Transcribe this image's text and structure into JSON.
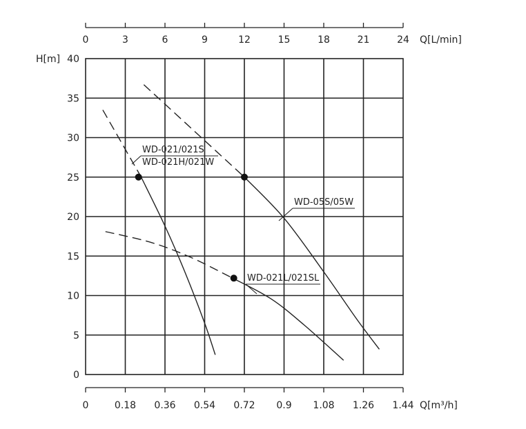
{
  "chart_data": {
    "type": "line",
    "ylabel": "H[m]",
    "ylim": [
      0,
      40
    ],
    "y_ticks": [
      "0",
      "5",
      "10",
      "15",
      "20",
      "25",
      "30",
      "35",
      "40"
    ],
    "x_top": {
      "label": "Q[L/min]",
      "lim": [
        0,
        24
      ],
      "ticks": [
        "0",
        "3",
        "6",
        "9",
        "12",
        "15",
        "18",
        "21",
        "24"
      ]
    },
    "x_bottom": {
      "label": "Q[m³/h]",
      "lim": [
        0,
        1.44
      ],
      "ticks": [
        "0",
        "0.18",
        "0.36",
        "0.54",
        "0.72",
        "0.9",
        "1.08",
        "1.26",
        "1.44"
      ]
    },
    "grid": true,
    "series": [
      {
        "name": "WD-021/021S",
        "name2": "WD-021H/021W",
        "x_unit": "L/min",
        "dashed_points": [
          [
            1.3,
            33.5
          ],
          [
            4.2,
            25.0
          ]
        ],
        "solid_points": [
          [
            4.2,
            25.0
          ],
          [
            6.0,
            18.8
          ],
          [
            7.5,
            13.0
          ],
          [
            9.0,
            6.5
          ],
          [
            9.8,
            2.5
          ]
        ],
        "marker": [
          4.0,
          25.0
        ]
      },
      {
        "name": "WD-05S/05W",
        "x_unit": "L/min",
        "dashed_points": [
          [
            4.4,
            36.7
          ],
          [
            12.0,
            25.0
          ]
        ],
        "solid_points": [
          [
            12.0,
            25.0
          ],
          [
            15.0,
            19.8
          ],
          [
            18.0,
            13.0
          ],
          [
            20.5,
            7.0
          ],
          [
            22.2,
            3.2
          ]
        ],
        "marker": [
          12.0,
          25.0
        ]
      },
      {
        "name": "WD-021L/021SL",
        "x_unit": "L/min",
        "dashed_points": [
          [
            1.5,
            18.1
          ],
          [
            5.0,
            16.7
          ],
          [
            8.0,
            14.8
          ],
          [
            11.0,
            12.3
          ]
        ],
        "solid_points": [
          [
            11.0,
            12.3
          ],
          [
            14.0,
            9.6
          ],
          [
            16.5,
            6.3
          ],
          [
            19.5,
            1.8
          ]
        ],
        "marker": [
          11.2,
          12.2
        ]
      }
    ]
  }
}
